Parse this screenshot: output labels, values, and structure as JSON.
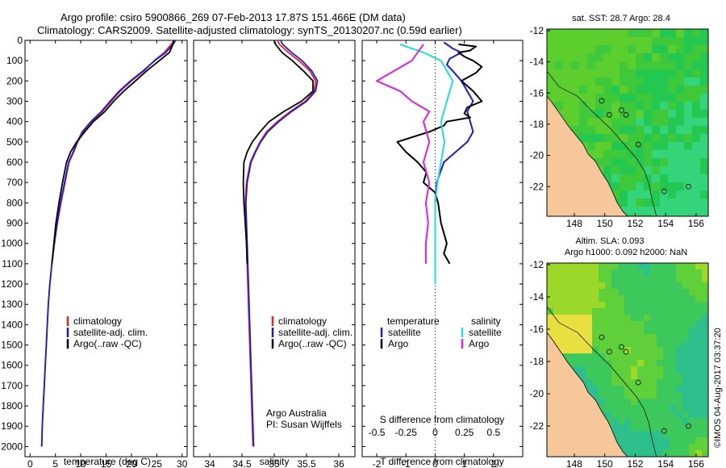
{
  "header": {
    "line1": "Argo profile: csiro 5900866_269 07-Feb-2013 17.87S 151.466E (DM data)",
    "line2": "Climatology: CARS2009. Satellite-adjusted climatology: synTS_20130207.nc (0.59d earlier)"
  },
  "colors": {
    "climatology": "#ee2222",
    "satellite": "#1a1ae0",
    "argo": "#000000",
    "argo_sal": "#e020e0",
    "satellite_sal": "#22dddd",
    "land": "#f5c79a",
    "coast": "#000000"
  },
  "credit": "©IMOS 04-Aug-2017 03:37:20",
  "chart_data": [
    {
      "type": "line",
      "panel": "temperature",
      "xlabel": "temperature (deg C)",
      "ylabel": "",
      "xlim": [
        -1,
        31
      ],
      "ylim": [
        2050,
        0
      ],
      "xticks": [
        0,
        5,
        10,
        15,
        20,
        25,
        30
      ],
      "yticks": [
        0,
        100,
        200,
        300,
        400,
        500,
        600,
        700,
        800,
        900,
        1000,
        1100,
        1200,
        1300,
        1400,
        1500,
        1600,
        1700,
        1800,
        1900,
        2000
      ],
      "legend": [
        "climatology",
        "satellite-adj. clim.",
        "Argo(..raw -QC)"
      ],
      "series": [
        {
          "name": "climatology",
          "color_key": "climatology",
          "points": [
            [
              28.4,
              0
            ],
            [
              28.2,
              10
            ],
            [
              26.5,
              60
            ],
            [
              24.5,
              100
            ],
            [
              22.5,
              150
            ],
            [
              20,
              200
            ],
            [
              17.8,
              250
            ],
            [
              16,
              300
            ],
            [
              14.3,
              350
            ],
            [
              12.2,
              400
            ],
            [
              10.5,
              450
            ],
            [
              9.4,
              500
            ],
            [
              8.6,
              550
            ],
            [
              7.7,
              600
            ],
            [
              6.9,
              700
            ],
            [
              6.1,
              800
            ],
            [
              5.4,
              900
            ],
            [
              4.8,
              1000
            ],
            [
              4.3,
              1100
            ],
            [
              3.9,
              1200
            ],
            [
              3.6,
              1300
            ],
            [
              3.4,
              1400
            ],
            [
              3.2,
              1500
            ],
            [
              3,
              1600
            ],
            [
              2.8,
              1700
            ],
            [
              2.6,
              1800
            ],
            [
              2.4,
              1900
            ],
            [
              2.3,
              2000
            ]
          ]
        },
        {
          "name": "satellite-adj. clim.",
          "color_key": "satellite",
          "points": [
            [
              28.7,
              0
            ],
            [
              28.5,
              10
            ],
            [
              26.8,
              60
            ],
            [
              24.6,
              100
            ],
            [
              22.3,
              150
            ],
            [
              19.8,
              200
            ],
            [
              17.6,
              250
            ],
            [
              15.8,
              300
            ],
            [
              14.1,
              350
            ],
            [
              12,
              400
            ],
            [
              10.3,
              450
            ],
            [
              9.3,
              500
            ],
            [
              8.5,
              550
            ],
            [
              7.6,
              600
            ],
            [
              6.8,
              700
            ],
            [
              6,
              800
            ],
            [
              5.3,
              900
            ],
            [
              4.8,
              1000
            ],
            [
              4.3,
              1100
            ],
            [
              3.9,
              1200
            ],
            [
              3.6,
              1300
            ],
            [
              3.4,
              1400
            ],
            [
              3.2,
              1500
            ],
            [
              3,
              1600
            ],
            [
              2.8,
              1700
            ],
            [
              2.6,
              1800
            ],
            [
              2.4,
              1900
            ],
            [
              2.3,
              2000
            ]
          ]
        },
        {
          "name": "Argo(..raw -QC)",
          "color_key": "argo",
          "points": [
            [
              28.3,
              0
            ],
            [
              28.2,
              20
            ],
            [
              27.5,
              60
            ],
            [
              25.5,
              100
            ],
            [
              23,
              150
            ],
            [
              20.8,
              200
            ],
            [
              18.5,
              250
            ],
            [
              16.5,
              300
            ],
            [
              14.8,
              350
            ],
            [
              12.5,
              400
            ],
            [
              10.8,
              450
            ],
            [
              9.2,
              500
            ],
            [
              8,
              550
            ],
            [
              7.2,
              600
            ],
            [
              6.4,
              700
            ],
            [
              5.7,
              800
            ],
            [
              5.1,
              900
            ],
            [
              4.7,
              1000
            ],
            [
              4.3,
              1100
            ]
          ]
        }
      ]
    },
    {
      "type": "line",
      "panel": "salinity",
      "xlabel": "salinity",
      "xlim": [
        33.75,
        36.25
      ],
      "ylim": [
        2050,
        0
      ],
      "xticks": [
        34,
        34.5,
        35,
        35.5,
        36
      ],
      "legend": [
        "climatology",
        "satellite-adj. clim.",
        "Argo(..raw -QC)"
      ],
      "note1": "Argo Australia",
      "note2": "PI: Susan Wijffels",
      "series": [
        {
          "name": "climatology",
          "color_key": "climatology",
          "points": [
            [
              35.05,
              0
            ],
            [
              35.08,
              20
            ],
            [
              35.22,
              60
            ],
            [
              35.38,
              100
            ],
            [
              35.55,
              150
            ],
            [
              35.64,
              200
            ],
            [
              35.62,
              250
            ],
            [
              35.48,
              300
            ],
            [
              35.25,
              350
            ],
            [
              35.05,
              400
            ],
            [
              34.88,
              450
            ],
            [
              34.78,
              500
            ],
            [
              34.7,
              550
            ],
            [
              34.63,
              600
            ],
            [
              34.57,
              700
            ],
            [
              34.55,
              800
            ],
            [
              34.56,
              900
            ],
            [
              34.57,
              1000
            ],
            [
              34.58,
              1100
            ],
            [
              34.59,
              1200
            ],
            [
              34.6,
              1300
            ],
            [
              34.61,
              1400
            ],
            [
              34.62,
              1500
            ],
            [
              34.63,
              1600
            ],
            [
              34.64,
              1700
            ],
            [
              34.65,
              1800
            ],
            [
              34.66,
              1900
            ],
            [
              34.67,
              2000
            ]
          ]
        },
        {
          "name": "satellite-adj. clim.",
          "color_key": "satellite",
          "points": [
            [
              35.1,
              0
            ],
            [
              35.13,
              20
            ],
            [
              35.27,
              60
            ],
            [
              35.43,
              100
            ],
            [
              35.58,
              150
            ],
            [
              35.67,
              200
            ],
            [
              35.64,
              250
            ],
            [
              35.5,
              300
            ],
            [
              35.27,
              350
            ],
            [
              35.07,
              400
            ],
            [
              34.9,
              450
            ],
            [
              34.79,
              500
            ],
            [
              34.71,
              550
            ],
            [
              34.64,
              600
            ],
            [
              34.58,
              700
            ],
            [
              34.56,
              800
            ],
            [
              34.57,
              900
            ],
            [
              34.58,
              1000
            ],
            [
              34.59,
              1100
            ],
            [
              34.6,
              1200
            ],
            [
              34.61,
              1300
            ],
            [
              34.62,
              1400
            ],
            [
              34.63,
              1500
            ],
            [
              34.64,
              1600
            ],
            [
              34.65,
              1700
            ],
            [
              34.66,
              1800
            ],
            [
              34.67,
              1900
            ],
            [
              34.68,
              2000
            ]
          ]
        },
        {
          "name": "Argo(..raw -QC)",
          "color_key": "argo",
          "points": [
            [
              35,
              0
            ],
            [
              35.02,
              20
            ],
            [
              35.12,
              60
            ],
            [
              35.28,
              100
            ],
            [
              35.45,
              150
            ],
            [
              35.6,
              200
            ],
            [
              35.6,
              250
            ],
            [
              35.42,
              300
            ],
            [
              35.15,
              350
            ],
            [
              34.92,
              400
            ],
            [
              34.78,
              450
            ],
            [
              34.66,
              500
            ],
            [
              34.58,
              550
            ],
            [
              34.53,
              600
            ],
            [
              34.52,
              700
            ],
            [
              34.53,
              800
            ],
            [
              34.55,
              900
            ],
            [
              34.57,
              1000
            ],
            [
              34.58,
              1100
            ]
          ]
        }
      ]
    },
    {
      "type": "line",
      "panel": "difference",
      "xlabel_top": "S difference from climatology",
      "xlabel": "T difference from climatology",
      "xlim": [
        -2.5,
        3
      ],
      "ylim": [
        2050,
        0
      ],
      "xticks": [
        -2,
        -1,
        0,
        1,
        2
      ],
      "sticks": [
        -0.5,
        -0.25,
        0,
        0.25,
        0.5
      ],
      "legend_temp_title": "temperature",
      "legend_sal_title": "salinity",
      "legend_satellite": "satellite",
      "legend_argo": "Argo",
      "series": [
        {
          "name": "T satellite",
          "color_key": "satellite",
          "points": [
            [
              0.3,
              10
            ],
            [
              0.6,
              40
            ],
            [
              0.9,
              60
            ],
            [
              0.5,
              90
            ],
            [
              0.4,
              120
            ],
            [
              0.6,
              150
            ],
            [
              0.9,
              200
            ],
            [
              1.3,
              300
            ],
            [
              1.1,
              350
            ],
            [
              1.2,
              400
            ],
            [
              1.3,
              450
            ],
            [
              1.1,
              500
            ],
            [
              0.7,
              550
            ],
            [
              0.3,
              600
            ],
            [
              0.05,
              700
            ],
            [
              0,
              800
            ]
          ]
        },
        {
          "name": "T Argo",
          "color_key": "argo",
          "points": [
            [
              0.8,
              20
            ],
            [
              1.4,
              30
            ],
            [
              1.2,
              50
            ],
            [
              0.8,
              60
            ],
            [
              1,
              80
            ],
            [
              1.3,
              100
            ],
            [
              1.6,
              130
            ],
            [
              1.4,
              160
            ],
            [
              0.9,
              200
            ],
            [
              1.3,
              250
            ],
            [
              1.6,
              300
            ],
            [
              1.1,
              330
            ],
            [
              1,
              360
            ],
            [
              1.2,
              380
            ],
            [
              0.4,
              400
            ],
            [
              0.3,
              420
            ],
            [
              -0.2,
              450
            ],
            [
              -1.3,
              500
            ],
            [
              -1,
              550
            ],
            [
              -0.6,
              600
            ],
            [
              -0.3,
              650
            ],
            [
              -0.4,
              700
            ],
            [
              0,
              750
            ],
            [
              0.1,
              800
            ],
            [
              0.2,
              900
            ],
            [
              0.4,
              1000
            ],
            [
              0.3,
              1050
            ],
            [
              0.5,
              1100
            ]
          ]
        },
        {
          "name": "S satellite",
          "color_key": "satellite_sal",
          "points": [
            [
              -0.3,
              20
            ],
            [
              -0.1,
              60
            ],
            [
              0.05,
              100
            ],
            [
              0.1,
              150
            ],
            [
              0.15,
              200
            ],
            [
              0.1,
              300
            ],
            [
              0.05,
              400
            ],
            [
              0.08,
              500
            ],
            [
              0.05,
              600
            ],
            [
              0.02,
              700
            ],
            [
              0,
              800
            ],
            [
              0,
              900
            ],
            [
              0,
              1000
            ],
            [
              0,
              1100
            ],
            [
              0,
              1200
            ]
          ]
        },
        {
          "name": "S Argo",
          "color_key": "argo_sal",
          "points": [
            [
              -0.1,
              20
            ],
            [
              -0.15,
              60
            ],
            [
              -0.2,
              100
            ],
            [
              -0.35,
              150
            ],
            [
              -0.5,
              200
            ],
            [
              -0.3,
              250
            ],
            [
              -0.2,
              300
            ],
            [
              -0.05,
              350
            ],
            [
              -0.1,
              400
            ],
            [
              -0.05,
              500
            ],
            [
              -0.1,
              600
            ],
            [
              -0.05,
              700
            ],
            [
              -0.08,
              800
            ],
            [
              -0.06,
              900
            ],
            [
              -0.08,
              1000
            ],
            [
              -0.08,
              1100
            ]
          ]
        }
      ]
    },
    {
      "type": "heatmap",
      "panel": "sst-map",
      "title": "sat. SST: 28.7 Argo: 28.4",
      "xticks": [
        148,
        150,
        152,
        154,
        156
      ],
      "yticks": [
        -12,
        -14,
        -16,
        -18,
        -20,
        -22
      ],
      "xlim": [
        146.2,
        156.8
      ],
      "ylim": [
        -23.9,
        -11.9
      ]
    },
    {
      "type": "heatmap",
      "panel": "sla-map",
      "title1": "Altim. SLA: 0.093",
      "title2": "Argo h1000: 0.092 h2000: NaN",
      "xticks": [
        148,
        150,
        152,
        154,
        156
      ],
      "yticks": [
        -12,
        -14,
        -16,
        -18,
        -20,
        -22
      ],
      "xlim": [
        146.2,
        156.8
      ],
      "ylim": [
        -23.9,
        -11.9
      ]
    }
  ]
}
